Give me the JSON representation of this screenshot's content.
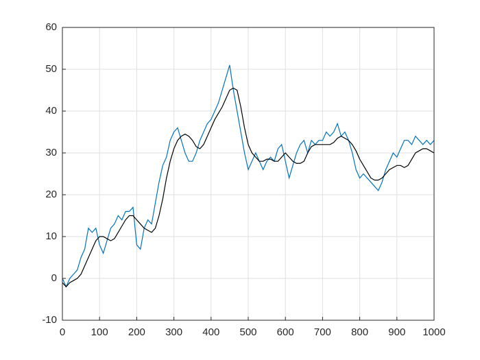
{
  "chart_data": {
    "type": "line",
    "x": [
      0,
      10,
      20,
      30,
      40,
      50,
      60,
      70,
      80,
      90,
      100,
      110,
      120,
      130,
      140,
      150,
      160,
      170,
      180,
      190,
      200,
      210,
      220,
      230,
      240,
      250,
      260,
      270,
      280,
      290,
      300,
      310,
      320,
      330,
      340,
      350,
      360,
      370,
      380,
      390,
      400,
      410,
      420,
      430,
      440,
      450,
      460,
      470,
      480,
      490,
      500,
      510,
      520,
      530,
      540,
      550,
      560,
      570,
      580,
      590,
      600,
      610,
      620,
      630,
      640,
      650,
      660,
      670,
      680,
      690,
      700,
      710,
      720,
      730,
      740,
      750,
      760,
      770,
      780,
      790,
      800,
      810,
      820,
      830,
      840,
      850,
      860,
      870,
      880,
      890,
      900,
      910,
      920,
      930,
      940,
      950,
      960,
      970,
      980,
      990,
      1000
    ],
    "series": [
      {
        "color": "#0072bd",
        "values": [
          0,
          -2,
          0,
          1,
          2,
          5,
          7,
          12,
          11,
          12,
          8,
          6,
          9,
          12,
          13,
          15,
          14,
          16,
          16,
          17,
          8,
          7,
          12,
          14,
          13,
          18,
          23,
          27,
          29,
          33,
          35,
          36,
          33,
          30,
          28,
          28,
          30,
          33,
          35,
          37,
          38,
          40,
          42,
          45,
          48,
          51,
          45,
          40,
          35,
          30,
          26,
          28,
          30,
          28,
          26,
          28,
          29,
          28,
          31,
          32,
          28,
          24,
          27,
          30,
          32,
          33,
          30,
          33,
          32,
          33,
          33,
          35,
          34,
          35,
          37,
          34,
          35,
          33,
          30,
          26,
          24,
          25,
          24,
          23,
          22,
          21,
          23,
          26,
          28,
          30,
          29,
          31,
          33,
          33,
          32,
          34,
          33,
          32,
          33,
          32,
          33
        ]
      },
      {
        "color": "#000000",
        "values": [
          -1,
          -2,
          -1,
          -0.5,
          0,
          1,
          3,
          5,
          7,
          9,
          10,
          10,
          9.5,
          9,
          9.5,
          11,
          12.5,
          14,
          15,
          15,
          14,
          13,
          12,
          11.5,
          11,
          12,
          15,
          19,
          24,
          28,
          31,
          33,
          34,
          34.5,
          34,
          33,
          31.5,
          31,
          32,
          34,
          36,
          38,
          39.5,
          41,
          43,
          45,
          45.5,
          45,
          41,
          36,
          32,
          30,
          29,
          28,
          28,
          28.5,
          28.5,
          28,
          28,
          29,
          30,
          29,
          28,
          27.5,
          27.5,
          28,
          30,
          31.5,
          32,
          32,
          32,
          32,
          32,
          32.5,
          33.5,
          34,
          33.5,
          33,
          32,
          30.5,
          28.5,
          27,
          25.5,
          24,
          23.5,
          23.5,
          24,
          25,
          26,
          26.5,
          27,
          27,
          26.5,
          27,
          28.5,
          30,
          30.5,
          31,
          31,
          30.5,
          30
        ]
      }
    ],
    "xlim": [
      0,
      1000
    ],
    "xticks": [
      0,
      100,
      200,
      300,
      400,
      500,
      600,
      700,
      800,
      900,
      1000
    ],
    "ylim": [
      -10,
      60
    ],
    "yticks": [
      -10,
      0,
      10,
      20,
      30,
      40,
      50,
      60
    ],
    "grid": true
  }
}
